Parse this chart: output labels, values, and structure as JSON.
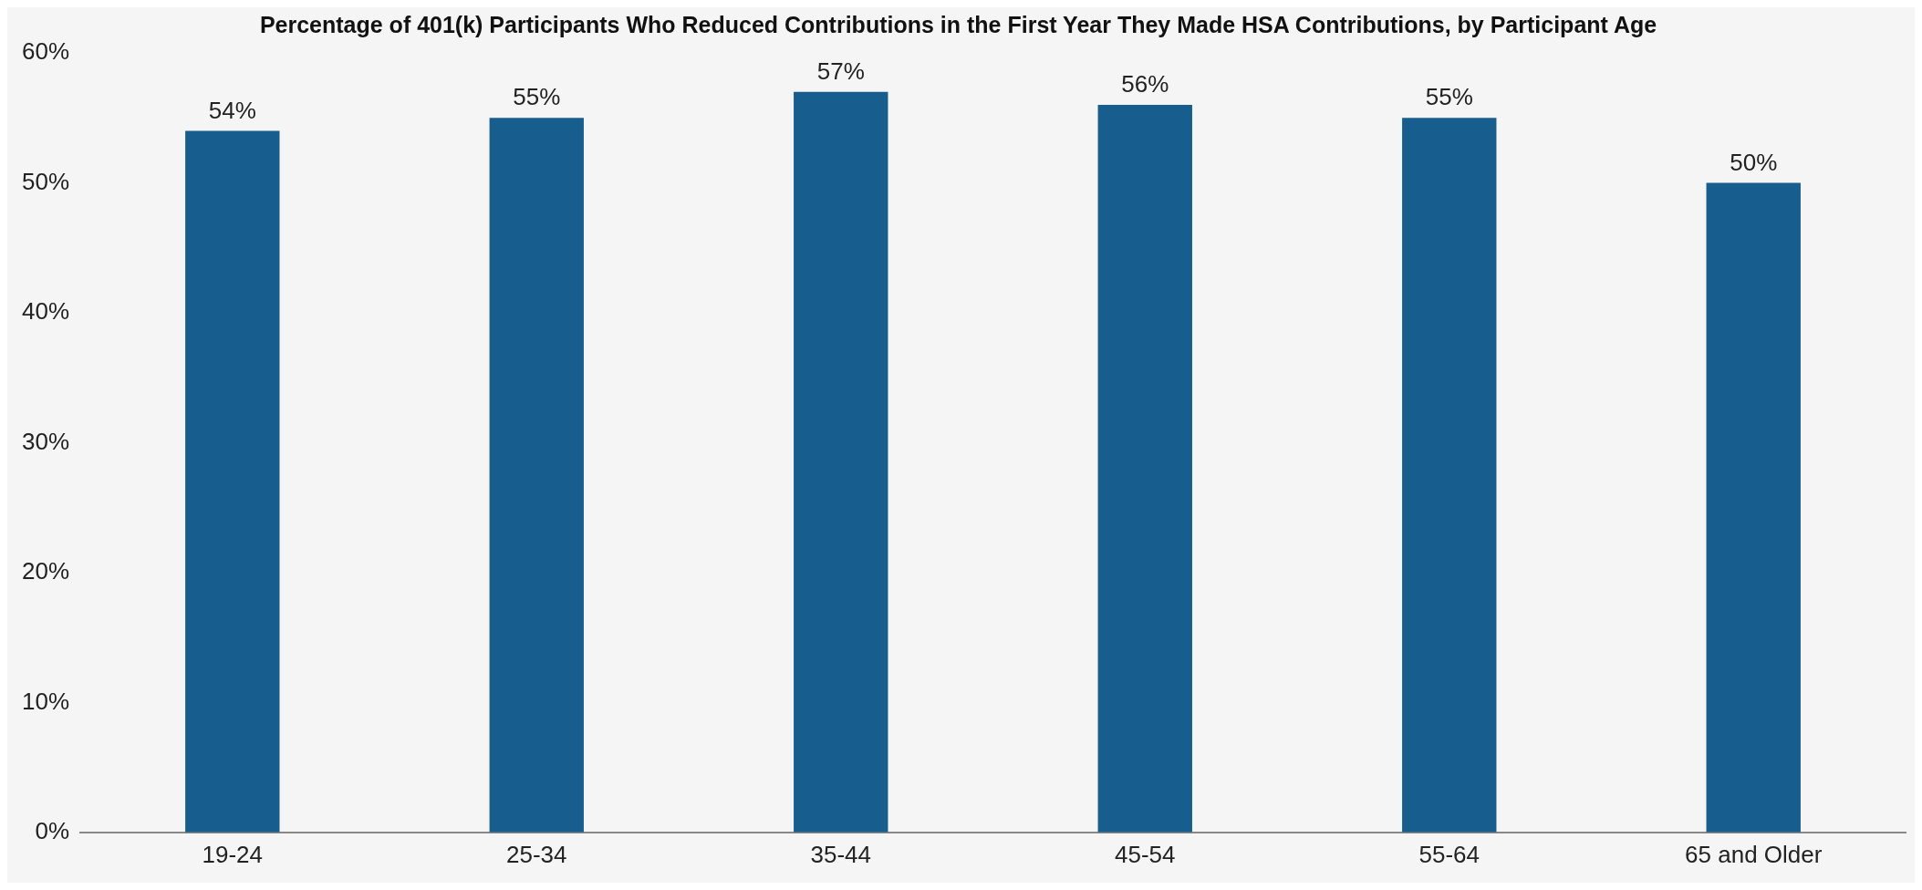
{
  "chart_data": {
    "type": "bar",
    "title": "Percentage of 401(k) Participants Who Reduced Contributions in the First Year They Made HSA Contributions, by Participant Age",
    "categories": [
      "19-24",
      "25-34",
      "35-44",
      "45-54",
      "55-64",
      "65 and Older"
    ],
    "values": [
      54,
      55,
      57,
      56,
      55,
      50
    ],
    "color": "#175e8e",
    "ylim": [
      0,
      60
    ],
    "yticks": [
      {
        "value": 0,
        "label": "0%"
      },
      {
        "value": 10,
        "label": "10%"
      },
      {
        "value": 20,
        "label": "20%"
      },
      {
        "value": 30,
        "label": "30%"
      },
      {
        "value": 40,
        "label": "40%"
      },
      {
        "value": 50,
        "label": "50%"
      },
      {
        "value": 60,
        "label": "60%"
      }
    ],
    "data_labels": true,
    "value_labels": [
      "54%",
      "55%",
      "57%",
      "56%",
      "55%",
      "50%"
    ],
    "grid": false,
    "legend": false
  }
}
